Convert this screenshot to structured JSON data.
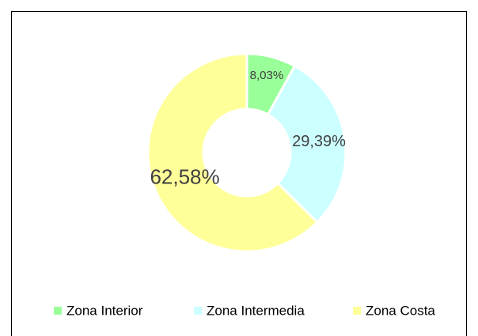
{
  "chart_data": {
    "type": "donut",
    "categories": [
      "Zona Interior",
      "Zona Intermedia",
      "Zona Costa"
    ],
    "values": [
      8.03,
      29.39,
      62.58
    ],
    "value_labels": [
      "8,03%",
      "29,39%",
      "62,58%"
    ],
    "colors": [
      "#99ff99",
      "#ccffff",
      "#ffff99"
    ],
    "legend": "bottom"
  }
}
